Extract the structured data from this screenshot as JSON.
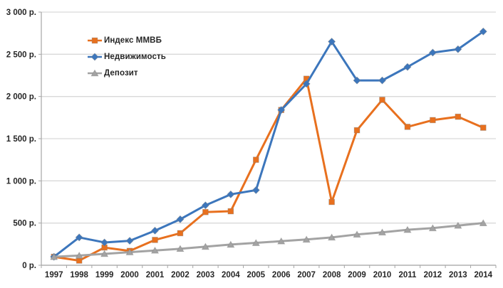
{
  "chart_data": {
    "type": "line",
    "title": "",
    "xlabel": "",
    "ylabel": "",
    "currency_suffix": "р.",
    "grid": true,
    "legend_position": "top-left-inside",
    "ylim": [
      0,
      3000
    ],
    "y_ticks": [
      {
        "value": 0,
        "label": "0 р."
      },
      {
        "value": 500,
        "label": "500 р."
      },
      {
        "value": 1000,
        "label": "1 000 р."
      },
      {
        "value": 1500,
        "label": "1 500 р."
      },
      {
        "value": 2000,
        "label": "2 000 р."
      },
      {
        "value": 2500,
        "label": "2 500 р."
      },
      {
        "value": 3000,
        "label": "3 000 р."
      }
    ],
    "categories": [
      "1997",
      "1998",
      "1999",
      "2000",
      "2001",
      "2002",
      "2003",
      "2004",
      "2005",
      "2006",
      "2007",
      "2008",
      "2009",
      "2010",
      "2011",
      "2012",
      "2013",
      "2014"
    ],
    "series": [
      {
        "key": "micex",
        "name": "Индекс ММВБ",
        "color": "#E8701E",
        "marker": "square",
        "values": [
          100,
          55,
          210,
          170,
          300,
          380,
          630,
          640,
          1250,
          1840,
          2210,
          750,
          1600,
          1960,
          1640,
          1720,
          1760,
          1630
        ]
      },
      {
        "key": "realty",
        "name": "Недвижимость",
        "color": "#3C76BC",
        "marker": "diamond",
        "values": [
          100,
          330,
          270,
          290,
          410,
          545,
          710,
          840,
          890,
          1840,
          2150,
          2650,
          2190,
          2190,
          2350,
          2520,
          2560,
          2770
        ]
      },
      {
        "key": "deposit",
        "name": "Депозит",
        "color": "#A3A3A3",
        "marker": "triangle",
        "values": [
          100,
          115,
          135,
          155,
          175,
          195,
          220,
          245,
          265,
          285,
          305,
          330,
          365,
          390,
          420,
          440,
          470,
          500
        ]
      }
    ],
    "style": {
      "grid_color": "#D9D9D9",
      "axis_color": "#A6A6A6",
      "tick_label_color": "#262626",
      "marker_edge_color": "#7F7F7F"
    }
  }
}
